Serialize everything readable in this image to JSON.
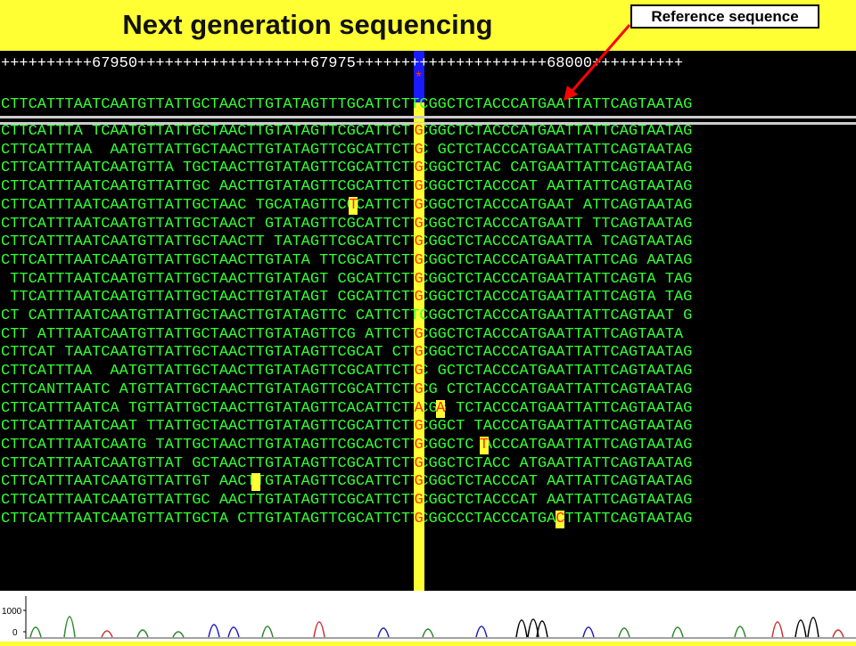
{
  "header": {
    "title": "Next generation sequencing",
    "reference_label": "Reference sequence"
  },
  "viewer": {
    "ruler": "++++++++++67950+++++++++++++++++++67975+++++++++++++++++++++68000++++++++++",
    "highlight_marker": "*",
    "reference": "CTTCATTTAATCAATGTTATTGCTAACTTGTATAGTTTGCATTCTTCGGCTCTACCCATGAATTATTCAGTAATAG",
    "reads": [
      "CTTCATTTA TCAATGTTATTGCTAACTTGTATAGTTCGCATTCT CGGCTCTACCCATGAATTATTCAGTAATAG",
      "CTTCATTTAA  AATGTTATTGCTAACTTGTATAGTTCGCATTCTTC GCTCTACCCATGAATTATTCAGTAATAG",
      "CTTCATTTAATCAATGTTA TGCTAACTTGTATAGTTCGCATTCTTCGGCTCTAC CATGAATTATTCAGTAATAG",
      "CTTCATTTAATCAATGTTATTGC AACTTGTATAGTTCGCATTCTTCGGCTCTACCCAT AATTATTCAGTAATAG",
      "CTTCATTTAATCAATGTTATTGCTAAC TGCATAGTTCGCATTCTTCGGCTCTACCCATGAAT ATTCAGTAATAG",
      "CTTCATTTAATCAATGTTATTGCTAACT GTATAGTTCGCATTCTTCGGCTCTACCCATGAATT TTCAGTAATAG",
      "CTTCATTTAATCAATGTTATTGCTAACTT TATAGTTCGCATTCTTCGGCTCTACCCATGAATTA TCAGTAATAG",
      "CTTCATTTAATCAATGTTATTGCTAACTTGTATA TTCGCATTCTTCGGCTCTACCCATGAATTATTCAG AATAG",
      " TTCATTTAATCAATGTTATTGCTAACTTGTATAGT CGCATTCTTCGGCTCTACCCATGAATTATTCAGTA TAG",
      " TTCATTTAATCAATGTTATTGCTAACTTGTATAGT CGCATTCTTCGGCTCTACCCATGAATTATTCAGTA TAG",
      "CT CATTTAATCAATGTTATTGCTAACTTGTATAGTTC CATTCTTCGGCTCTACCCATGAATTATTCAGTAAT G",
      "CTT ATTTAATCAATGTTATTGCTAACTTGTATAGTTCG ATTCTTCGGCTCTACCCATGAATTATTCAGTAATA",
      "CTTCAT TAATCAATGTTATTGCTAACTTGTATAGTTCGCAT CTTCGGCTCTACCCATGAATTATTCAGTAATAG",
      "CTTCATTTAA  AATGTTATTGCTAACTTGTATAGTTCGCATTCTTC GCTCTACCCATGAATTATTCAGTAATAG",
      "CTTCANTTAATC ATGTTATTGCTAACTTGTATAGTTCGCATTCTTCG CTCTACCCATGAATTATTCAGTAATAG",
      "CTTCATTTAATCA TGTTATTGCTAACTTGTATAGTTCACATTCTTCGG TCTACCCATGAATTATTCAGTAATAG",
      "CTTCATTTAATCAAT TTATTGCTAACTTGTATAGTTCGCATTCTTCGGCT TACCCATGAATTATTCAGTAATAG",
      "CTTCATTTAATCAATG TATTGCTAACTTGTATAGTTCGCACTCTTCGGCTC ACCCATGAATTATTCAGTAATAG",
      "CTTCATTTAATCAATGTTAT GCTAACTTGTATAGTTCGCATTCTTCGGCTCTACC ATGAATTATTCAGTAATAG",
      "CTTCATTTAATCAATGTTATTGT AACTTGTATAGTTCGCATTCTTCGGCTCTACCCAT AATTATTCAGTAATAG",
      "CTTCATTTAATCAATGTTATTGC AACTTGTATAGTTCGCATTCTTCGGCTCTACCCAT AATTATTCAGTAATAG",
      "CTTCATTTAATCAATGTTATTGCTA CTTGTATAGTTCGCATTCTTCGGCCCTACCCATGA TTATTCAGTAATAG"
    ],
    "mismatches": [
      {
        "row": 5,
        "col": 32
      },
      {
        "row": 16,
        "col": 40
      },
      {
        "row": 18,
        "col": 44
      },
      {
        "row": 20,
        "col": 23
      },
      {
        "row": 22,
        "col": 51
      }
    ],
    "highlight_col": 38
  },
  "chromatogram": {
    "y_tick_1000": "1000",
    "y_tick_0": "0"
  },
  "colors": {
    "background": "#ffff33",
    "viewer_bg": "#000000",
    "sequence_text": "#33ff33",
    "highlight_text": "#ff3300",
    "ref_marker": "#1a1aff",
    "arrow": "#ff0000"
  }
}
